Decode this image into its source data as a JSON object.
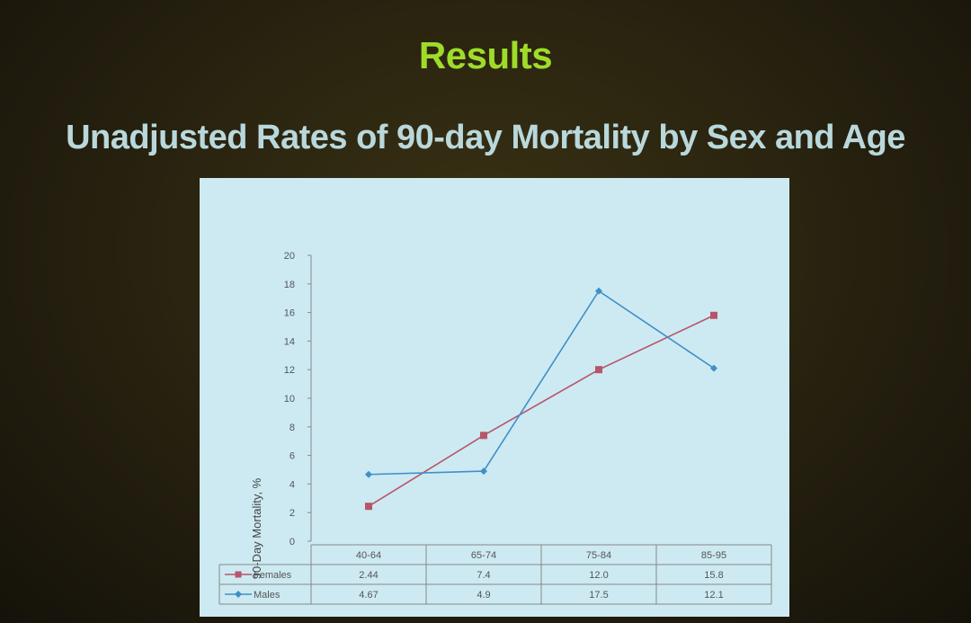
{
  "slide": {
    "title": "Results",
    "subtitle": "Unadjusted Rates of 90-day Mortality by Sex and Age"
  },
  "chart_data": {
    "type": "line",
    "ylabel": "90-Day Mortality, %",
    "ylim": [
      0,
      20
    ],
    "yticks": [
      "0",
      "2",
      "4",
      "6",
      "8",
      "10",
      "12",
      "14",
      "16",
      "18",
      "20"
    ],
    "categories": [
      "40-64",
      "65-74",
      "75-84",
      "85-95"
    ],
    "series": [
      {
        "name": "Females",
        "color": "#b8556a",
        "marker": "square",
        "values": [
          2.44,
          7.4,
          12.0,
          15.8
        ],
        "labels": [
          "2.44",
          "7.4",
          "12.0",
          "15.8"
        ]
      },
      {
        "name": "Males",
        "color": "#3f8fc8",
        "marker": "diamond",
        "values": [
          4.67,
          4.9,
          17.5,
          12.1
        ],
        "labels": [
          "4.67",
          "4.9",
          "17.5",
          "12.1"
        ]
      }
    ],
    "grid": false,
    "legend": "data-table-rows"
  }
}
